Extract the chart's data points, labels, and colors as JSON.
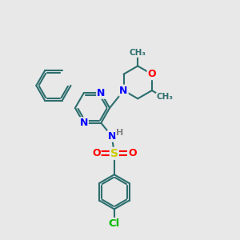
{
  "bg_color": "#e8e8e8",
  "bond_color": "#2d6e6e",
  "bond_width": 1.5,
  "atom_colors": {
    "N": "#0000ff",
    "O": "#ff0000",
    "S": "#cccc00",
    "Cl": "#00bb00",
    "H": "#808080",
    "C": "#2d6e6e"
  },
  "font_size": 9
}
